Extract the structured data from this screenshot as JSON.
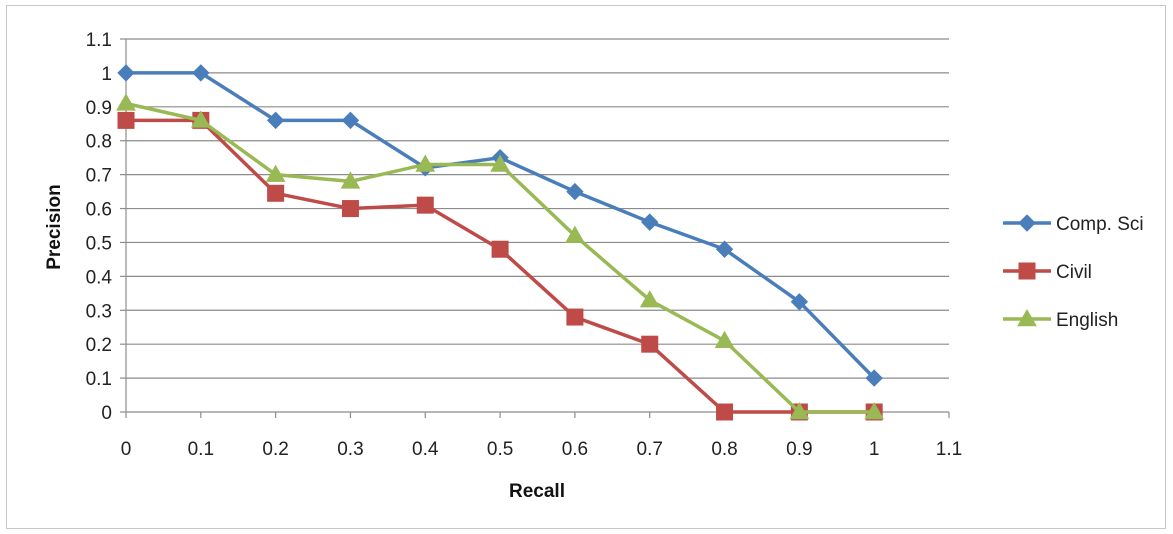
{
  "chart_data": {
    "type": "line",
    "title": "",
    "xlabel": "Recall",
    "ylabel": "Precision",
    "xlim": [
      0,
      1.1
    ],
    "ylim": [
      0,
      1.1
    ],
    "x_ticks": [
      "0",
      "0.1",
      "0.2",
      "0.3",
      "0.4",
      "0.5",
      "0.6",
      "0.7",
      "0.8",
      "0.9",
      "1",
      "1.1"
    ],
    "y_ticks": [
      "0",
      "0.1",
      "0.2",
      "0.3",
      "0.4",
      "0.5",
      "0.6",
      "0.7",
      "0.8",
      "0.9",
      "1",
      "1.1"
    ],
    "grid": "horizontal",
    "legend_position": "right",
    "x": [
      0,
      0.1,
      0.2,
      0.3,
      0.4,
      0.5,
      0.6,
      0.7,
      0.8,
      0.9,
      1.0
    ],
    "series": [
      {
        "name": "Comp. Sci",
        "color": "#4a7ebb",
        "marker": "diamond",
        "values": [
          1.0,
          1.0,
          0.86,
          0.86,
          0.72,
          0.75,
          0.65,
          0.56,
          0.48,
          0.325,
          0.1
        ]
      },
      {
        "name": "Civil",
        "color": "#be4b48",
        "marker": "square",
        "values": [
          0.86,
          0.86,
          0.645,
          0.6,
          0.61,
          0.48,
          0.28,
          0.2,
          0.0,
          0.0,
          0.0
        ]
      },
      {
        "name": "English",
        "color": "#98b954",
        "marker": "triangle",
        "values": [
          0.91,
          0.86,
          0.7,
          0.68,
          0.73,
          0.73,
          0.52,
          0.33,
          0.21,
          0.0,
          0.0
        ]
      }
    ]
  }
}
